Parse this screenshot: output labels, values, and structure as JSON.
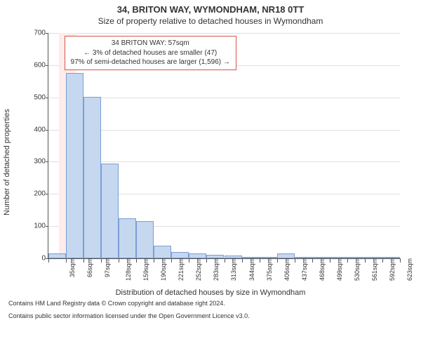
{
  "title": {
    "main": "34, BRITON WAY, WYMONDHAM, NR18 0TT",
    "sub": "Size of property relative to detached houses in Wymondham",
    "main_fontsize": 13,
    "sub_fontsize": 12
  },
  "axes": {
    "y_label": "Number of detached properties",
    "x_label": "Distribution of detached houses by size in Wymondham",
    "label_fontsize": 11,
    "tick_fontsize": 10,
    "axis_color": "#555555",
    "grid_color": "#e0e0e0"
  },
  "legend": {
    "border_color": "#d9534f",
    "background_color": "#ffffff",
    "fontsize": 10,
    "line1": "34 BRITON WAY: 57sqm",
    "line2": "← 3% of detached houses are smaller (47)",
    "line3": "97% of semi-detached houses are larger (1,596) →"
  },
  "highlight": {
    "position_index": 0.6,
    "color": "#fdecea"
  },
  "chart": {
    "type": "histogram",
    "bar_fill": "#c6d7f0",
    "bar_border": "#7a9ed6",
    "background_color": "#ffffff",
    "ylim": [
      0,
      700
    ],
    "ytick_step": 100,
    "y_ticks": [
      0,
      100,
      200,
      300,
      400,
      500,
      600,
      700
    ],
    "x_tick_labels": [
      "35sqm",
      "66sqm",
      "97sqm",
      "128sqm",
      "159sqm",
      "190sqm",
      "221sqm",
      "252sqm",
      "283sqm",
      "313sqm",
      "344sqm",
      "375sqm",
      "406sqm",
      "437sqm",
      "468sqm",
      "499sqm",
      "530sqm",
      "561sqm",
      "592sqm",
      "623sqm",
      "654sqm"
    ],
    "values": [
      15,
      575,
      502,
      295,
      125,
      115,
      40,
      20,
      15,
      10,
      8,
      5,
      3,
      15,
      3,
      3,
      2,
      2,
      2,
      2
    ]
  },
  "footer": {
    "line1": "Contains HM Land Registry data © Crown copyright and database right 2024.",
    "line2": "Contains public sector information licensed under the Open Government Licence v3.0.",
    "fontsize": 9
  }
}
